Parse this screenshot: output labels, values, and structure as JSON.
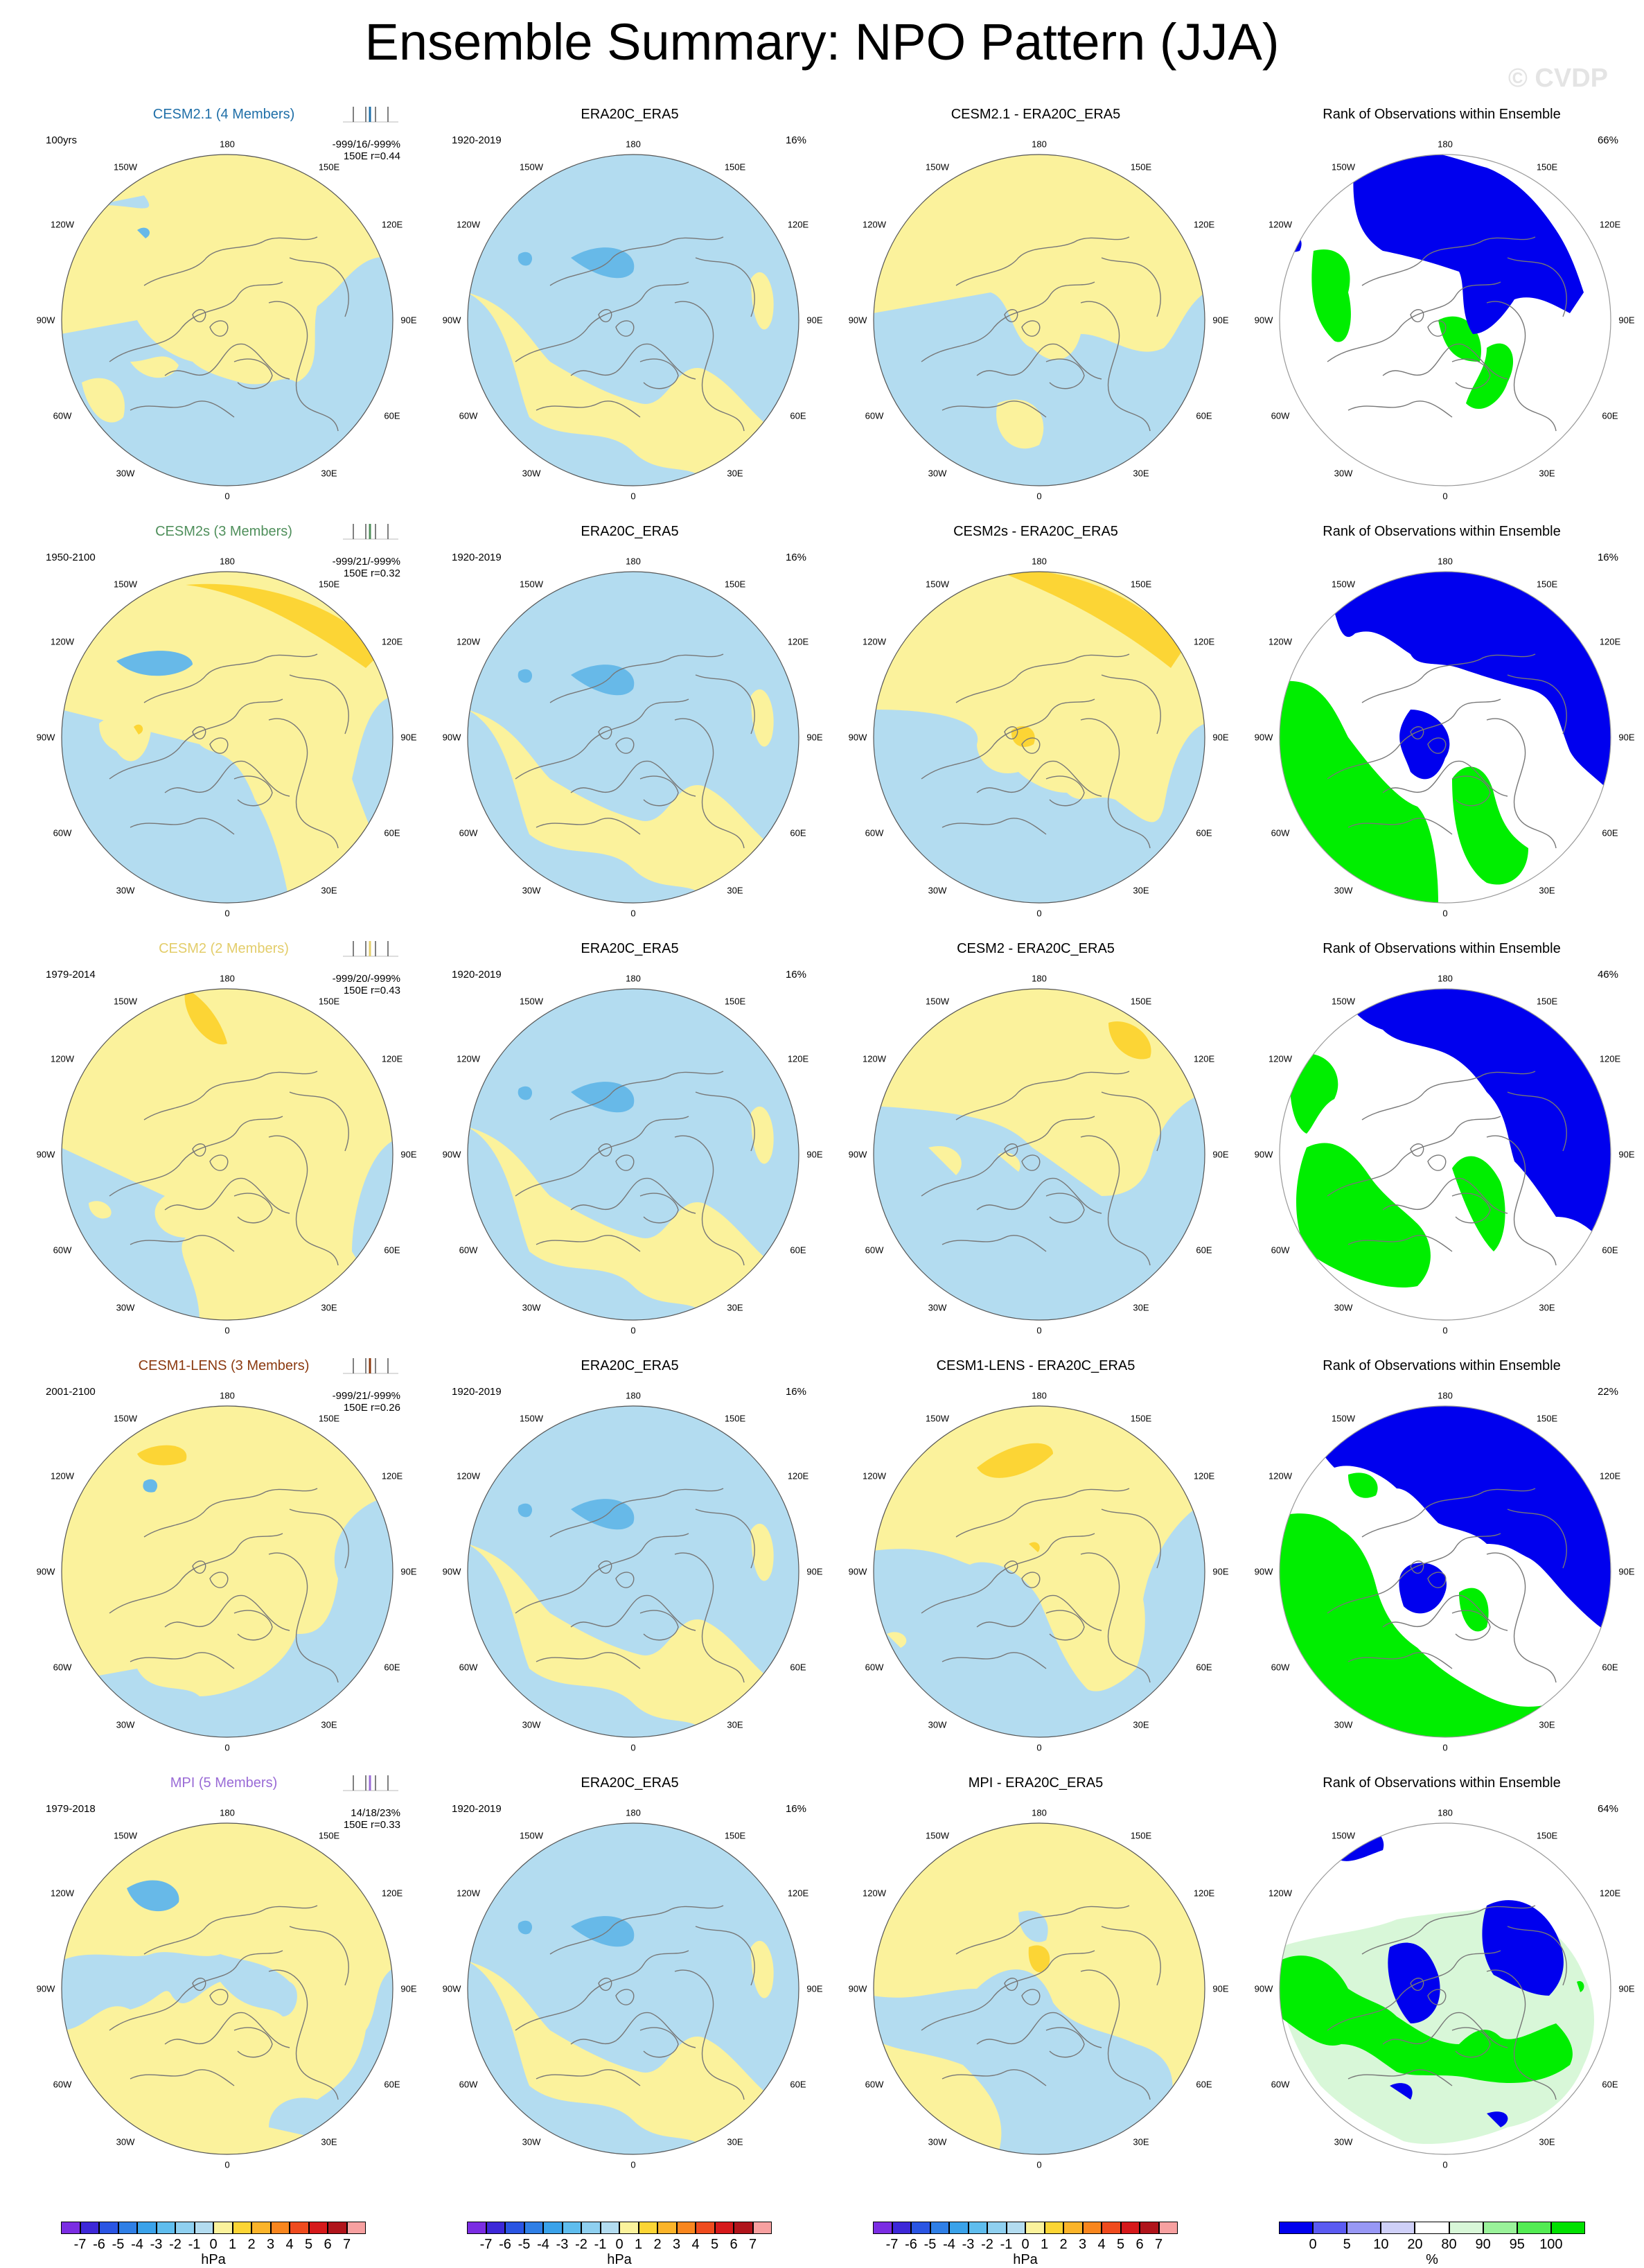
{
  "title": "Ensemble Summary: NPO Pattern (JJA)",
  "watermark": "© CVDP",
  "lon_labels": {
    "top": "180",
    "ul": "150W",
    "ur": "150E",
    "ml": "120W",
    "mr": "120E",
    "l": "90W",
    "r": "90E",
    "ll": "60W",
    "lr": "60E",
    "bl": "30W",
    "br": "30E",
    "bottom": "0"
  },
  "colors": {
    "sea": "#b3dcf0",
    "land_pos": "#fbf29c",
    "pos2": "#fcd535",
    "neg2": "#67b9e8",
    "rank_low": "#0000ee",
    "rank_high": "#00ee00",
    "rank_mid": "#d8f7d8"
  },
  "rows": [
    {
      "model": "CESM2.1 (4 Members)",
      "model_color": "#1f6fa8",
      "years": "100yrs",
      "stats1": "-999/16/-999%",
      "stats2": "150E r=0.44",
      "obs_title": "ERA20C_ERA5",
      "obs_years": "1920-2019",
      "obs_pct": "16%",
      "diff_title": "CESM2.1 - ERA20C_ERA5",
      "rank_title": "Rank of Observations within Ensemble",
      "rank_pct": "66%"
    },
    {
      "model": "CESM2s (3 Members)",
      "model_color": "#4f8f5b",
      "years": "1950-2100",
      "stats1": "-999/21/-999%",
      "stats2": "150E r=0.32",
      "obs_title": "ERA20C_ERA5",
      "obs_years": "1920-2019",
      "obs_pct": "16%",
      "diff_title": "CESM2s - ERA20C_ERA5",
      "rank_title": "Rank of Observations within Ensemble",
      "rank_pct": "16%"
    },
    {
      "model": "CESM2 (2 Members)",
      "model_color": "#e3cd6a",
      "years": "1979-2014",
      "stats1": "-999/20/-999%",
      "stats2": "150E r=0.43",
      "obs_title": "ERA20C_ERA5",
      "obs_years": "1920-2019",
      "obs_pct": "16%",
      "diff_title": "CESM2 - ERA20C_ERA5",
      "rank_title": "Rank of Observations within Ensemble",
      "rank_pct": "46%"
    },
    {
      "model": "CESM1-LENS (3 Members)",
      "model_color": "#8b3a10",
      "years": "2001-2100",
      "stats1": "-999/21/-999%",
      "stats2": "150E r=0.26",
      "obs_title": "ERA20C_ERA5",
      "obs_years": "1920-2019",
      "obs_pct": "16%",
      "diff_title": "CESM1-LENS - ERA20C_ERA5",
      "rank_title": "Rank of Observations within Ensemble",
      "rank_pct": "22%"
    },
    {
      "model": "MPI (5 Members)",
      "model_color": "#9a6bd6",
      "years": "1979-2018",
      "stats1": "14/18/23%",
      "stats2": "150E r=0.33",
      "obs_title": "ERA20C_ERA5",
      "obs_years": "1920-2019",
      "obs_pct": "16%",
      "diff_title": "MPI - ERA20C_ERA5",
      "rank_title": "Rank of Observations within Ensemble",
      "rank_pct": "64%"
    }
  ],
  "colorbar_hpa": {
    "labels": [
      "-7",
      "-6",
      "-5",
      "-4",
      "-3",
      "-2",
      "-1",
      "0",
      "1",
      "2",
      "3",
      "4",
      "5",
      "6",
      "7"
    ],
    "unit": "hPa",
    "colors": [
      "#7b2de3",
      "#3d28d8",
      "#2a55e3",
      "#2f7fe6",
      "#3aa2ea",
      "#5fbdee",
      "#8fd0f0",
      "#b3dcf0",
      "#fbf29c",
      "#fcd535",
      "#fbb42a",
      "#f9861e",
      "#ef4b1e",
      "#d6191b",
      "#b0141b",
      "#f7a0a0"
    ]
  },
  "colorbar_rank": {
    "labels": [
      "0",
      "5",
      "10",
      "20",
      "80",
      "90",
      "95",
      "100"
    ],
    "unit": "%",
    "colors": [
      "#0000ee",
      "#5b5bf2",
      "#9898f5",
      "#cfd0f8",
      "#ffffff",
      "#d8f7d8",
      "#9af29a",
      "#53ec53",
      "#00e100"
    ]
  }
}
